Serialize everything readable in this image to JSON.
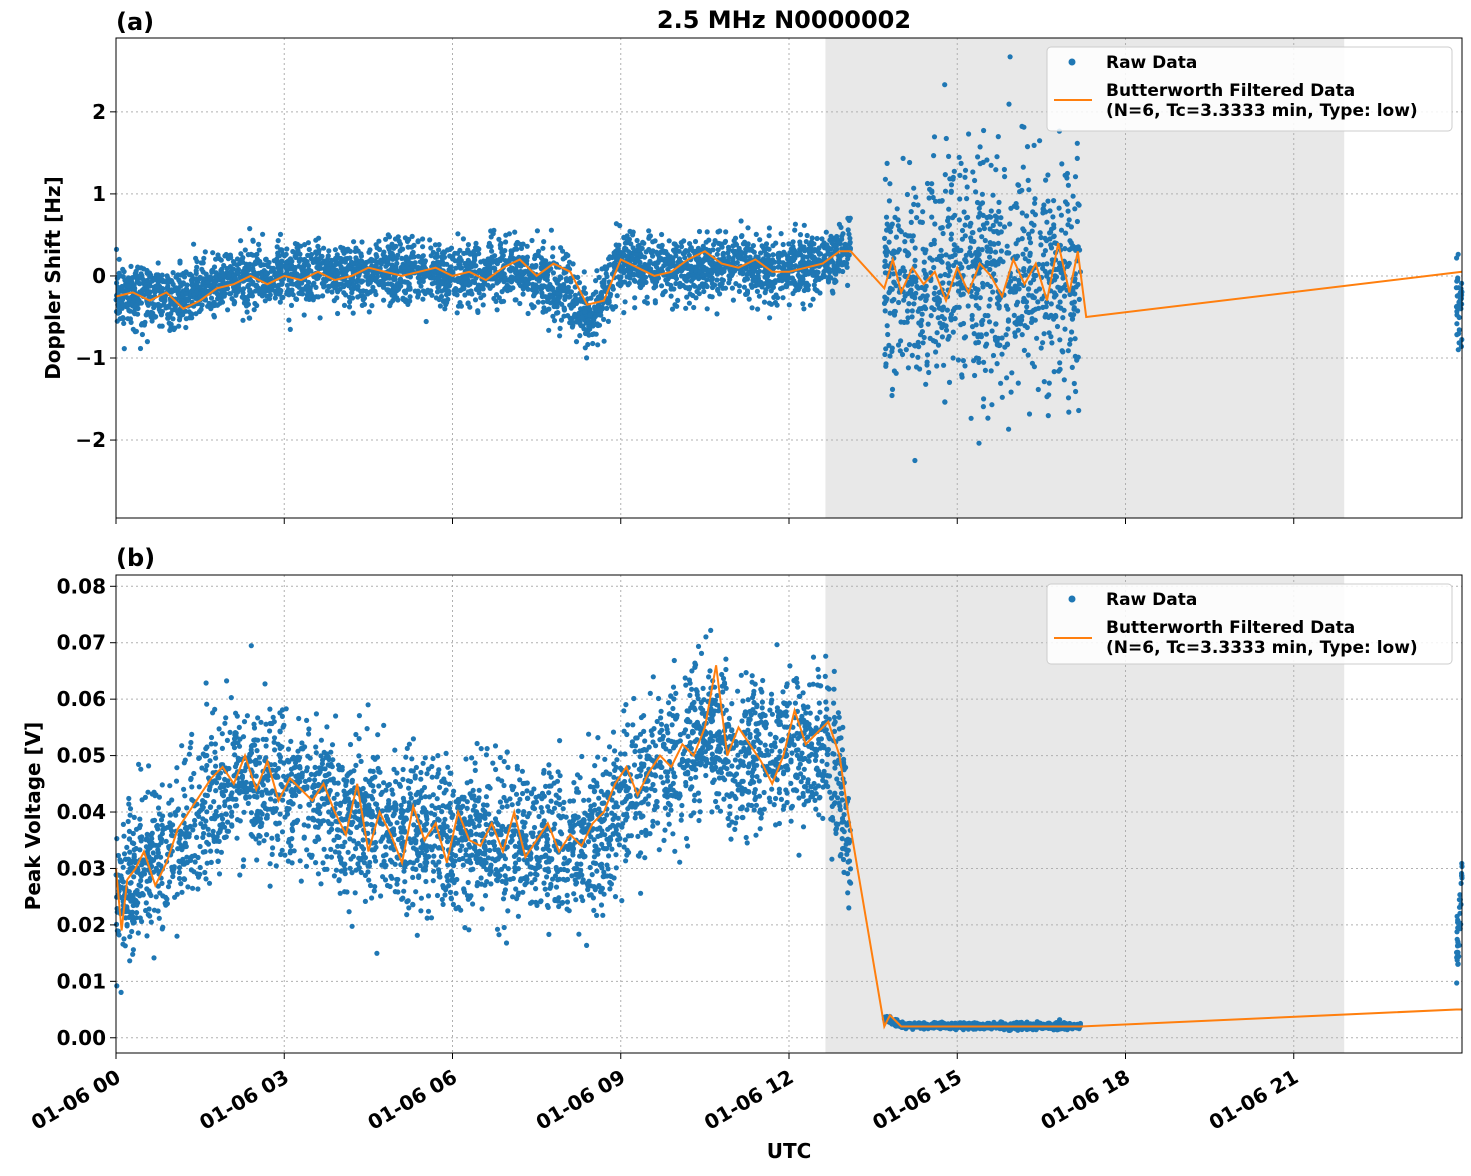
{
  "figure": {
    "title": "2.5 MHz N0000002",
    "xlabel": "UTC",
    "x_tick_labels": [
      "01-06 00",
      "01-06 03",
      "01-06 06",
      "01-06 09",
      "01-06 12",
      "01-06 15",
      "01-06 18",
      "01-06 21"
    ],
    "colors": {
      "raw": "#1f77b4",
      "filtered": "#ff7f0e",
      "shade": "#e8e8e8"
    }
  },
  "chart_data": [
    {
      "type": "scatter",
      "panel_label": "(a)",
      "ylabel": "Doppler Shift [Hz]",
      "x_unit": "hours UTC on 01-06",
      "xlim": [
        0,
        24
      ],
      "ylim": [
        -2.95,
        2.9
      ],
      "y_ticks": [
        -2,
        -1,
        0,
        1,
        2
      ],
      "y_tick_labels": [
        "−2",
        "−1",
        "0",
        "1",
        "2"
      ],
      "grid": true,
      "legend_position": "top-right",
      "shaded_interval": [
        12.65,
        21.9
      ],
      "series": [
        {
          "name": "Raw Data",
          "kind": "scatter",
          "segments": [
            {
              "x_range": [
                0.0,
                13.1
              ],
              "center_x": [
                0.0,
                1.0,
                2.0,
                3.0,
                4.0,
                5.0,
                6.0,
                7.0,
                8.0,
                8.5,
                9.0,
                10.0,
                11.0,
                12.0,
                13.1
              ],
              "center_y": [
                -0.2,
                -0.3,
                -0.05,
                0.0,
                0.0,
                0.05,
                0.0,
                0.1,
                -0.2,
                -0.5,
                0.2,
                0.05,
                0.15,
                0.05,
                0.3
              ],
              "spread": 0.35
            },
            {
              "x_range": [
                13.7,
                17.2
              ],
              "center_x": [
                13.7,
                15.4,
                17.2
              ],
              "center_y": [
                0.0,
                -0.05,
                0.0
              ],
              "spread": 1.3
            },
            {
              "x_range": [
                23.9,
                24.0
              ],
              "center_x": [
                23.9,
                24.0
              ],
              "center_y": [
                -0.3,
                -0.3
              ],
              "spread": 0.4
            }
          ]
        },
        {
          "name": "Butterworth Filtered Data\n(N=6, Tc=3.3333 min, Type: low)",
          "kind": "line",
          "x": [
            0.0,
            0.3,
            0.6,
            0.9,
            1.2,
            1.5,
            1.8,
            2.1,
            2.4,
            2.7,
            3.0,
            3.3,
            3.6,
            3.9,
            4.2,
            4.5,
            4.8,
            5.1,
            5.4,
            5.7,
            6.0,
            6.3,
            6.6,
            6.9,
            7.2,
            7.5,
            7.8,
            8.1,
            8.4,
            8.7,
            9.0,
            9.3,
            9.6,
            9.9,
            10.2,
            10.5,
            10.8,
            11.1,
            11.4,
            11.7,
            12.0,
            12.3,
            12.6,
            12.9,
            13.1,
            13.7,
            13.85,
            14.0,
            14.2,
            14.4,
            14.6,
            14.8,
            15.0,
            15.2,
            15.4,
            15.6,
            15.8,
            16.0,
            16.2,
            16.4,
            16.6,
            16.8,
            17.0,
            17.15,
            17.3,
            24.0
          ],
          "y": [
            -0.25,
            -0.2,
            -0.3,
            -0.2,
            -0.4,
            -0.3,
            -0.15,
            -0.1,
            0.0,
            -0.1,
            0.0,
            -0.05,
            0.05,
            -0.05,
            0.0,
            0.1,
            0.05,
            0.0,
            0.05,
            0.1,
            0.0,
            0.05,
            -0.05,
            0.1,
            0.2,
            0.0,
            0.15,
            0.05,
            -0.35,
            -0.3,
            0.2,
            0.1,
            0.0,
            0.05,
            0.2,
            0.3,
            0.15,
            0.1,
            0.2,
            0.05,
            0.05,
            0.1,
            0.15,
            0.3,
            0.3,
            -0.15,
            0.2,
            -0.2,
            0.1,
            -0.1,
            0.05,
            -0.3,
            0.1,
            -0.2,
            0.15,
            0.0,
            -0.25,
            0.2,
            -0.1,
            0.15,
            -0.3,
            0.4,
            -0.2,
            0.3,
            -0.5,
            0.05
          ]
        }
      ]
    },
    {
      "type": "scatter",
      "panel_label": "(b)",
      "ylabel": "Peak Voltage [V]",
      "x_unit": "hours UTC on 01-06",
      "xlim": [
        0,
        24
      ],
      "ylim": [
        -0.0027,
        0.082
      ],
      "y_ticks": [
        0.0,
        0.01,
        0.02,
        0.03,
        0.04,
        0.05,
        0.06,
        0.07,
        0.08
      ],
      "y_tick_labels": [
        "0.00",
        "0.01",
        "0.02",
        "0.03",
        "0.04",
        "0.05",
        "0.06",
        "0.07",
        "0.08"
      ],
      "grid": true,
      "legend_position": "top-right",
      "shaded_interval": [
        12.65,
        21.9
      ],
      "series": [
        {
          "name": "Raw Data",
          "kind": "scatter",
          "segments": [
            {
              "x_range": [
                0.0,
                13.1
              ],
              "center_x": [
                0.0,
                0.5,
                1.0,
                1.5,
                2.0,
                2.5,
                3.0,
                3.5,
                4.0,
                5.0,
                6.0,
                7.0,
                8.0,
                8.5,
                9.0,
                10.0,
                10.5,
                11.0,
                12.0,
                12.8,
                13.1
              ],
              "center_y": [
                0.024,
                0.03,
                0.033,
                0.04,
                0.045,
                0.046,
                0.045,
                0.043,
                0.04,
                0.036,
                0.035,
                0.035,
                0.034,
                0.035,
                0.042,
                0.05,
                0.055,
                0.05,
                0.052,
                0.05,
                0.035
              ],
              "spread": 0.012
            },
            {
              "x_range": [
                13.7,
                17.2
              ],
              "center_x": [
                13.7,
                14.0,
                17.2
              ],
              "center_y": [
                0.0035,
                0.0022,
                0.002
              ],
              "spread": 0.0005
            },
            {
              "x_range": [
                23.9,
                24.0
              ],
              "center_x": [
                23.9,
                24.0
              ],
              "center_y": [
                0.012,
                0.028
              ],
              "spread": 0.006
            }
          ]
        },
        {
          "name": "Butterworth Filtered Data\n(N=6, Tc=3.3333 min, Type: low)",
          "kind": "line",
          "x": [
            0.0,
            0.1,
            0.2,
            0.35,
            0.5,
            0.7,
            0.9,
            1.1,
            1.3,
            1.5,
            1.7,
            1.9,
            2.1,
            2.3,
            2.5,
            2.7,
            2.9,
            3.1,
            3.3,
            3.5,
            3.7,
            3.9,
            4.1,
            4.3,
            4.5,
            4.7,
            4.9,
            5.1,
            5.3,
            5.5,
            5.7,
            5.9,
            6.1,
            6.3,
            6.5,
            6.7,
            6.9,
            7.1,
            7.3,
            7.5,
            7.7,
            7.9,
            8.1,
            8.3,
            8.5,
            8.7,
            8.9,
            9.1,
            9.3,
            9.5,
            9.7,
            9.9,
            10.1,
            10.3,
            10.5,
            10.7,
            10.9,
            11.1,
            11.3,
            11.5,
            11.7,
            11.9,
            12.1,
            12.3,
            12.5,
            12.7,
            12.9,
            13.05,
            13.7,
            13.8,
            14.0,
            14.5,
            15.0,
            15.5,
            16.0,
            16.5,
            17.0,
            17.2,
            23.9,
            24.0
          ],
          "y": [
            0.03,
            0.019,
            0.028,
            0.03,
            0.033,
            0.027,
            0.031,
            0.037,
            0.04,
            0.043,
            0.046,
            0.048,
            0.045,
            0.05,
            0.044,
            0.049,
            0.042,
            0.046,
            0.044,
            0.042,
            0.045,
            0.04,
            0.036,
            0.045,
            0.033,
            0.04,
            0.036,
            0.031,
            0.041,
            0.035,
            0.038,
            0.031,
            0.04,
            0.035,
            0.034,
            0.038,
            0.033,
            0.04,
            0.032,
            0.035,
            0.038,
            0.033,
            0.036,
            0.034,
            0.038,
            0.04,
            0.045,
            0.048,
            0.043,
            0.047,
            0.05,
            0.048,
            0.052,
            0.05,
            0.055,
            0.066,
            0.05,
            0.055,
            0.052,
            0.049,
            0.045,
            0.05,
            0.058,
            0.052,
            0.054,
            0.056,
            0.05,
            0.04,
            0.002,
            0.004,
            0.002,
            0.002,
            0.002,
            0.002,
            0.002,
            0.002,
            0.002,
            0.002,
            0.005,
            0.005
          ]
        }
      ]
    }
  ]
}
